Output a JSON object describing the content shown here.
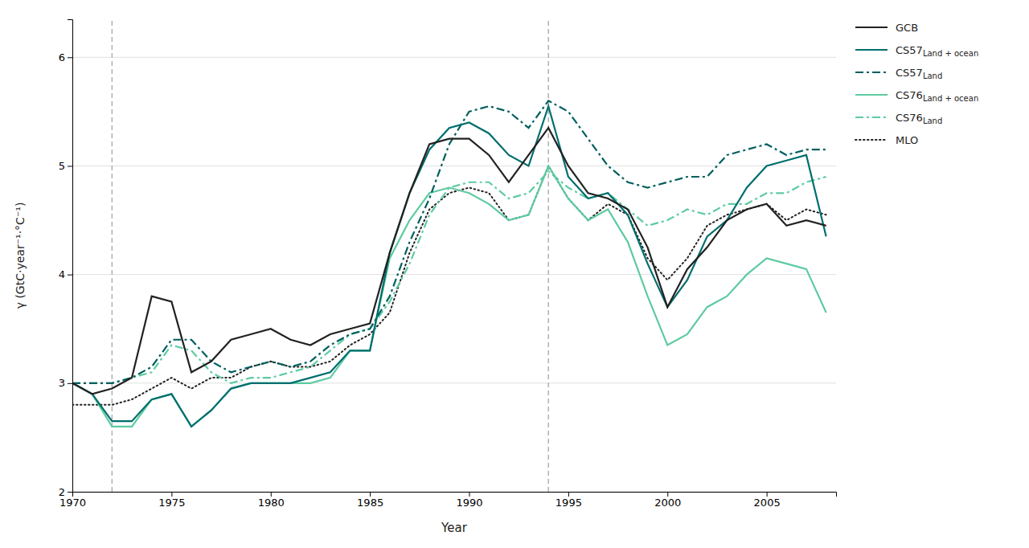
{
  "chart_data": {
    "type": "line",
    "xlabel": "Year",
    "ylabel": "γ (GtC·year⁻¹·°C⁻¹)",
    "x": [
      1970,
      1971,
      1972,
      1973,
      1974,
      1975,
      1976,
      1977,
      1978,
      1979,
      1980,
      1981,
      1982,
      1983,
      1984,
      1985,
      1986,
      1987,
      1988,
      1989,
      1990,
      1991,
      1992,
      1993,
      1994,
      1995,
      1996,
      1997,
      1998,
      1999,
      2000,
      2001,
      2002,
      2003,
      2004,
      2005,
      2006,
      2007,
      2008
    ],
    "xlim": [
      1970,
      2008.5
    ],
    "ylim": [
      2,
      6.35
    ],
    "xticks": [
      1970,
      1975,
      1980,
      1985,
      1990,
      1995,
      2000,
      2005
    ],
    "yticks": [
      2,
      3,
      4,
      5,
      6
    ],
    "grid": true,
    "legend": "right",
    "vlines": [
      1972,
      1994
    ],
    "series": [
      {
        "name": "MLO",
        "color": "#222222",
        "line_style": "dotted",
        "values": [
          2.8,
          2.8,
          2.8,
          2.85,
          2.95,
          3.05,
          2.95,
          3.05,
          3.05,
          3.15,
          3.2,
          3.15,
          3.15,
          3.2,
          3.35,
          3.45,
          3.65,
          4.2,
          4.6,
          4.75,
          4.8,
          4.75,
          4.5,
          4.55,
          5.0,
          4.7,
          4.5,
          4.65,
          4.55,
          4.15,
          3.95,
          4.15,
          4.45,
          4.55,
          4.6,
          4.65,
          4.5,
          4.6,
          4.55
        ]
      },
      {
        "name": "CS76Land",
        "color": "#5ecba1",
        "line_style": "dashdot",
        "values": [
          3.0,
          3.0,
          3.0,
          3.05,
          3.1,
          3.35,
          3.3,
          3.1,
          3.0,
          3.05,
          3.05,
          3.1,
          3.15,
          3.3,
          3.45,
          3.5,
          3.75,
          4.1,
          4.55,
          4.8,
          4.85,
          4.85,
          4.7,
          4.75,
          4.95,
          4.8,
          4.7,
          4.75,
          4.6,
          4.45,
          4.5,
          4.6,
          4.55,
          4.65,
          4.65,
          4.75,
          4.75,
          4.85,
          4.9
        ]
      },
      {
        "name": "CS76Land + ocean",
        "color": "#5ecba1",
        "line_style": "solid",
        "values": [
          3.0,
          2.9,
          2.6,
          2.6,
          2.85,
          2.9,
          2.6,
          2.75,
          2.95,
          3.0,
          3.0,
          3.0,
          3.0,
          3.05,
          3.3,
          3.3,
          4.15,
          4.5,
          4.75,
          4.8,
          4.75,
          4.65,
          4.5,
          4.55,
          5.0,
          4.7,
          4.5,
          4.6,
          4.3,
          3.8,
          3.35,
          3.45,
          3.7,
          3.8,
          4.0,
          4.15,
          4.1,
          4.05,
          3.65
        ]
      },
      {
        "name": "CS57Land",
        "color": "#005f5f",
        "line_style": "dashdot",
        "values": [
          3.0,
          3.0,
          3.0,
          3.05,
          3.15,
          3.4,
          3.4,
          3.2,
          3.1,
          3.15,
          3.2,
          3.15,
          3.2,
          3.35,
          3.45,
          3.5,
          3.8,
          4.3,
          4.7,
          5.2,
          5.5,
          5.55,
          5.5,
          5.35,
          5.6,
          5.5,
          5.25,
          5.0,
          4.85,
          4.8,
          4.85,
          4.9,
          4.9,
          5.1,
          5.15,
          5.2,
          5.1,
          5.15,
          5.15
        ]
      },
      {
        "name": "CS57Land + ocean",
        "color": "#006e6e",
        "line_style": "solid",
        "values": [
          3.0,
          2.9,
          2.65,
          2.65,
          2.85,
          2.9,
          2.6,
          2.75,
          2.95,
          3.0,
          3.0,
          3.0,
          3.05,
          3.1,
          3.3,
          3.3,
          4.2,
          4.75,
          5.15,
          5.35,
          5.4,
          5.3,
          5.1,
          5.0,
          5.55,
          4.9,
          4.7,
          4.75,
          4.55,
          4.1,
          3.7,
          3.95,
          4.35,
          4.5,
          4.8,
          5.0,
          5.05,
          5.1,
          4.35
        ]
      },
      {
        "name": "GCB",
        "color": "#222222",
        "line_style": "solid",
        "values": [
          3.0,
          2.9,
          2.95,
          3.05,
          3.8,
          3.75,
          3.1,
          3.2,
          3.4,
          3.45,
          3.5,
          3.4,
          3.35,
          3.45,
          3.5,
          3.55,
          4.2,
          4.75,
          5.2,
          5.25,
          5.25,
          5.1,
          4.85,
          5.1,
          5.35,
          5.0,
          4.75,
          4.7,
          4.6,
          4.25,
          3.7,
          4.05,
          4.25,
          4.5,
          4.6,
          4.65,
          4.45,
          4.5,
          4.45
        ]
      }
    ]
  }
}
